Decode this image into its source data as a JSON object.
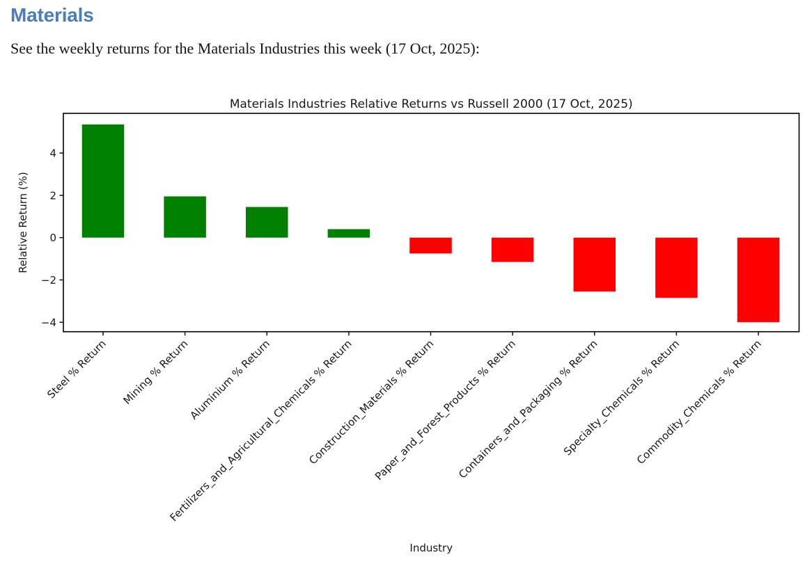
{
  "page": {
    "heading": "Materials",
    "intro": "See the weekly returns for the Materials Industries this week (17 Oct, 2025):"
  },
  "chart_data": {
    "type": "bar",
    "title": "Materials Industries Relative Returns vs Russell 2000 (17 Oct, 2025)",
    "xlabel": "Industry",
    "ylabel": "Relative Return (%)",
    "categories": [
      "Steel % Return",
      "Mining % Return",
      "Aluminium % Return",
      "Fertilizers_and_Agricultural_Chemicals % Return",
      "Construction_Materials % Return",
      "Paper_and_Forest_Products % Return",
      "Containers_and_Packaging % Return",
      "Specialty_Chemicals % Return",
      "Commodity_Chemicals % Return"
    ],
    "values": [
      5.35,
      1.95,
      1.45,
      0.4,
      -0.75,
      -1.15,
      -2.55,
      -2.85,
      -4.0
    ],
    "yticks": [
      -4,
      -2,
      0,
      2,
      4
    ],
    "ylim": [
      -4.45,
      5.88
    ],
    "grid": false,
    "legend": "none",
    "x_label_rotation_deg": 45,
    "positive_color": "#008000",
    "negative_color": "#ff0000",
    "frame_color": "#000000"
  }
}
